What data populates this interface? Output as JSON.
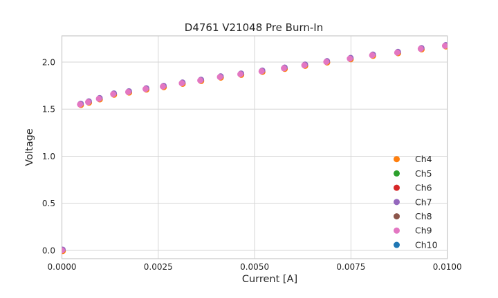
{
  "chart_data": {
    "type": "scatter",
    "title": "D4761 V21048 Pre Burn-In",
    "xlabel": "Current [A]",
    "ylabel": "Voltage",
    "xlim": [
      0.0,
      0.01
    ],
    "ylim": [
      -0.088,
      2.278
    ],
    "grid": true,
    "legend_position": "lower right",
    "xticks": {
      "values": [
        0.0,
        0.0025,
        0.005,
        0.0075,
        0.01
      ],
      "labels": [
        "0.0000",
        "0.0025",
        "0.0050",
        "0.0075",
        "0.0100"
      ]
    },
    "yticks": {
      "values": [
        0.0,
        0.5,
        1.0,
        1.5,
        2.0
      ],
      "labels": [
        "0.0",
        "0.5",
        "1.0",
        "1.5",
        "2.0"
      ]
    },
    "legend": [
      {
        "label": "Ch4",
        "color": "#ff7f0e"
      },
      {
        "label": "Ch5",
        "color": "#2ca02c"
      },
      {
        "label": "Ch6",
        "color": "#d62728"
      },
      {
        "label": "Ch7",
        "color": "#9467bd"
      },
      {
        "label": "Ch8",
        "color": "#8c564b"
      },
      {
        "label": "Ch9",
        "color": "#e377c2"
      },
      {
        "label": "Ch10",
        "color": "#1f77b4"
      }
    ],
    "series_overlap_note": "Channels Ch4-Ch10 plot visually identical overlapping points; pink Ch9 markers sit on top with thin orange and purple fringes visible at marker edges",
    "points": {
      "x": [
        0.0,
        0.00047,
        0.00068,
        0.00096,
        0.00133,
        0.00172,
        0.00217,
        0.00262,
        0.00311,
        0.00359,
        0.0041,
        0.00463,
        0.00518,
        0.00576,
        0.00629,
        0.00686,
        0.00747,
        0.00805,
        0.0087,
        0.00931,
        0.00994
      ],
      "y": [
        0.0,
        1.55,
        1.575,
        1.61,
        1.659,
        1.682,
        1.714,
        1.74,
        1.775,
        1.805,
        1.841,
        1.871,
        1.902,
        1.934,
        1.966,
        2.002,
        2.036,
        2.072,
        2.1,
        2.141,
        2.172
      ]
    },
    "colors": {
      "background": "#ffffff",
      "grid": "#d6d6d6",
      "spine": "#c8c8c8",
      "text": "#262626",
      "visible_marker": "#e377c2",
      "fringe_lower_right": "#ff7f0e",
      "fringe_upper_right": "#9467bd"
    }
  }
}
